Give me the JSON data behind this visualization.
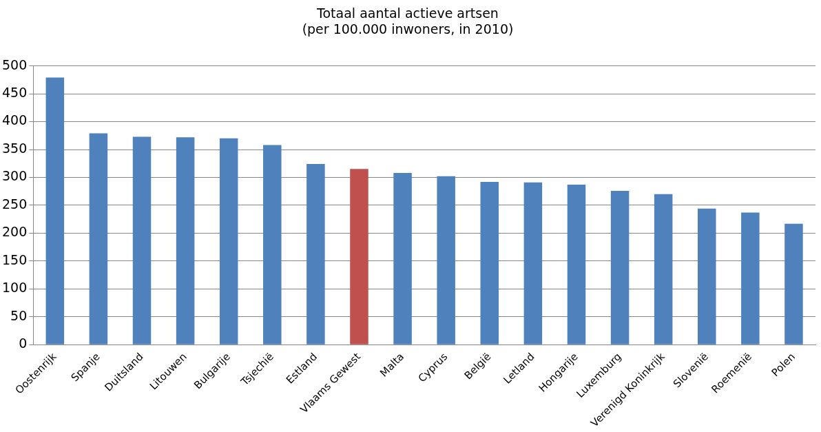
{
  "chart_data": {
    "type": "bar",
    "title": "Totaal aantal actieve artsen\n(per 100.000 inwoners, in 2010)",
    "categories": [
      "Oostenrijk",
      "Spanje",
      "Duitsland",
      "Litouwen",
      "Bulgarije",
      "Tsjechië",
      "Estland",
      "Vlaams Gewest",
      "Malta",
      "Cyprus",
      "België",
      "Letland",
      "Hongarije",
      "Luxemburg",
      "Verenigd Koninkrijk",
      "Slovenië",
      "Roemenië",
      "Polen"
    ],
    "values": [
      479,
      379,
      373,
      372,
      370,
      358,
      324,
      315,
      308,
      302,
      292,
      291,
      287,
      276,
      270,
      244,
      237,
      217
    ],
    "colors": [
      "#4f81bd",
      "#4f81bd",
      "#4f81bd",
      "#4f81bd",
      "#4f81bd",
      "#4f81bd",
      "#4f81bd",
      "#c0504d",
      "#4f81bd",
      "#4f81bd",
      "#4f81bd",
      "#4f81bd",
      "#4f81bd",
      "#4f81bd",
      "#4f81bd",
      "#4f81bd",
      "#4f81bd",
      "#4f81bd"
    ],
    "ylim": [
      0,
      500
    ],
    "yticks": [
      0,
      50,
      100,
      150,
      200,
      250,
      300,
      350,
      400,
      450,
      500
    ],
    "grid": "y",
    "legend": false
  }
}
